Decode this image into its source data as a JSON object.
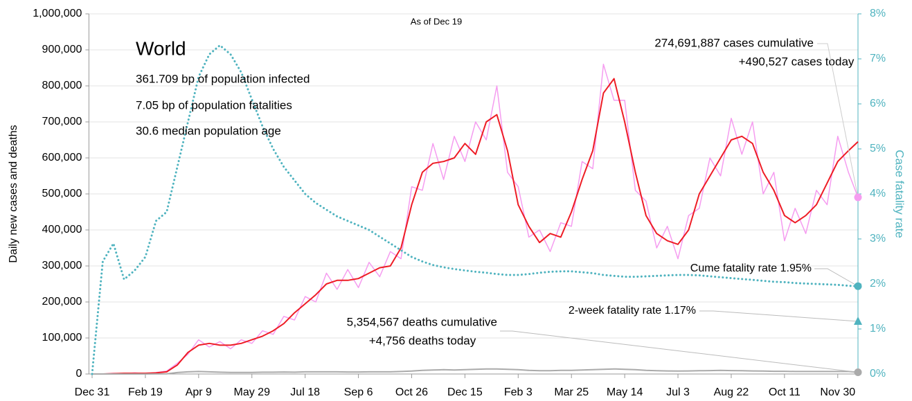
{
  "chart_data": {
    "type": "line",
    "subtitle": "As of Dec 19",
    "ylabel": "Daily new cases and deaths",
    "y2label": "Case fatality rate",
    "annotations": [
      "World",
      "361.709 bp of population infected",
      "7.05 bp of population fatalities",
      "30.6 median population age",
      "274,691,887 cases cumulative",
      "+490,527 cases today",
      "Cume fatality rate 1.95%",
      "2-week fatality rate 1.17%",
      "5,354,567 deaths cumulative",
      "+4,756 deaths today"
    ],
    "two_week_fatality_rate": 1.17,
    "two_week_color": "#4fb3bf",
    "x": [
      0,
      10,
      20,
      30,
      40,
      50,
      60,
      70,
      80,
      90,
      100,
      110,
      120,
      130,
      140,
      150,
      160,
      170,
      180,
      190,
      200,
      210,
      220,
      230,
      240,
      250,
      260,
      270,
      280,
      290,
      300,
      310,
      320,
      330,
      340,
      350,
      360,
      370,
      380,
      390,
      400,
      410,
      420,
      430,
      440,
      450,
      460,
      470,
      480,
      490,
      500,
      510,
      520,
      530,
      540,
      550,
      560,
      570,
      580,
      590,
      600,
      610,
      620,
      630,
      640,
      650,
      660,
      670,
      680,
      690,
      700,
      710,
      719
    ],
    "xlim": [
      -3,
      719
    ],
    "xticks": [
      {
        "value": 0,
        "label": "Dec 31"
      },
      {
        "value": 50,
        "label": "Feb 19"
      },
      {
        "value": 100,
        "label": "Apr 9"
      },
      {
        "value": 150,
        "label": "May 29"
      },
      {
        "value": 200,
        "label": "Jul 18"
      },
      {
        "value": 250,
        "label": "Sep 6"
      },
      {
        "value": 300,
        "label": "Oct 26"
      },
      {
        "value": 350,
        "label": "Dec 15"
      },
      {
        "value": 400,
        "label": "Feb 3"
      },
      {
        "value": 450,
        "label": "Mar 25"
      },
      {
        "value": 500,
        "label": "May 14"
      },
      {
        "value": 550,
        "label": "Jul 3"
      },
      {
        "value": 600,
        "label": "Aug 22"
      },
      {
        "value": 650,
        "label": "Oct 11"
      },
      {
        "value": 700,
        "label": "Nov 30"
      }
    ],
    "ylim": [
      0,
      1000000
    ],
    "yticks": [
      0,
      {
        "value": 100000,
        "label": "100,000"
      },
      {
        "value": 200000,
        "label": "200,000"
      },
      {
        "value": 300000,
        "label": "300,000"
      },
      {
        "value": 400000,
        "label": "400,000"
      },
      {
        "value": 500000,
        "label": "500,000"
      },
      {
        "value": 600000,
        "label": "600,000"
      },
      {
        "value": 700000,
        "label": "700,000"
      },
      {
        "value": 800000,
        "label": "800,000"
      },
      {
        "value": 900000,
        "label": "900,000"
      },
      {
        "value": 1000000,
        "label": "1,000,000"
      }
    ],
    "y2lim": [
      0,
      8
    ],
    "y2ticks": [
      {
        "value": 0,
        "label": "0%"
      },
      {
        "value": 1,
        "label": "1%"
      },
      {
        "value": 2,
        "label": "2%"
      },
      {
        "value": 3,
        "label": "3%"
      },
      {
        "value": 4,
        "label": "4%"
      },
      {
        "value": 5,
        "label": "5%"
      },
      {
        "value": 6,
        "label": "6%"
      },
      {
        "value": 7,
        "label": "7%"
      },
      {
        "value": 8,
        "label": "8%"
      }
    ],
    "grid": true,
    "series": [
      {
        "color": "#f59cf0",
        "style": "solid",
        "width": 1.5,
        "end_marker": true,
        "values": [
          0,
          0,
          2000,
          1000,
          3000,
          1000,
          4000,
          8000,
          30000,
          55000,
          95000,
          75000,
          90000,
          70000,
          95000,
          85000,
          120000,
          110000,
          160000,
          150000,
          215000,
          200000,
          280000,
          235000,
          290000,
          240000,
          310000,
          270000,
          340000,
          320000,
          520000,
          510000,
          640000,
          540000,
          660000,
          590000,
          700000,
          650000,
          800000,
          560000,
          520000,
          380000,
          400000,
          340000,
          420000,
          410000,
          590000,
          570000,
          860000,
          760000,
          760000,
          510000,
          480000,
          350000,
          410000,
          320000,
          440000,
          460000,
          600000,
          550000,
          710000,
          610000,
          700000,
          500000,
          560000,
          370000,
          460000,
          390000,
          510000,
          470000,
          660000,
          560000,
          490527
        ]
      },
      {
        "color": "#ee1c25",
        "style": "solid",
        "width": 2,
        "end_marker": false,
        "values": [
          0,
          0,
          1000,
          2000,
          2000,
          2000,
          3000,
          6000,
          25000,
          60000,
          80000,
          85000,
          80000,
          80000,
          85000,
          95000,
          105000,
          120000,
          140000,
          170000,
          195000,
          220000,
          250000,
          260000,
          260000,
          265000,
          280000,
          295000,
          300000,
          350000,
          470000,
          560000,
          585000,
          590000,
          600000,
          640000,
          610000,
          700000,
          720000,
          620000,
          470000,
          410000,
          365000,
          390000,
          380000,
          450000,
          540000,
          620000,
          780000,
          820000,
          700000,
          560000,
          440000,
          390000,
          370000,
          360000,
          400000,
          500000,
          550000,
          600000,
          650000,
          660000,
          640000,
          560000,
          510000,
          440000,
          420000,
          440000,
          470000,
          530000,
          590000,
          620000,
          645000
        ]
      },
      {
        "color": "#aaaaaa",
        "style": "solid",
        "width": 2,
        "end_marker": true,
        "values": [
          0,
          0,
          0,
          0,
          0,
          0,
          100,
          500,
          4000,
          6000,
          7000,
          6000,
          5000,
          4500,
          4500,
          4500,
          5000,
          5000,
          5500,
          5000,
          6000,
          6000,
          6000,
          6000,
          5500,
          5500,
          6000,
          6000,
          6000,
          7000,
          8000,
          10000,
          11000,
          12000,
          11000,
          12000,
          13000,
          14000,
          14000,
          13000,
          12000,
          10000,
          9000,
          9000,
          10000,
          10000,
          11000,
          12000,
          13000,
          14000,
          13000,
          12000,
          10000,
          9000,
          8500,
          8000,
          8500,
          9000,
          9500,
          10000,
          9500,
          9000,
          8500,
          8000,
          7500,
          7500,
          7000,
          7000,
          7000,
          7000,
          7000,
          7000,
          4756
        ]
      },
      {
        "color": "#4fb3bf",
        "style": "dotted",
        "width": 3,
        "end_marker": true,
        "axis": "y2",
        "values": [
          0,
          2.5,
          2.9,
          2.1,
          2.3,
          2.6,
          3.4,
          3.6,
          4.6,
          5.6,
          6.6,
          7.1,
          7.3,
          7.1,
          6.7,
          6.1,
          5.5,
          5.0,
          4.6,
          4.3,
          4.0,
          3.8,
          3.65,
          3.5,
          3.4,
          3.3,
          3.2,
          3.05,
          2.9,
          2.75,
          2.6,
          2.5,
          2.42,
          2.37,
          2.33,
          2.3,
          2.27,
          2.25,
          2.22,
          2.2,
          2.2,
          2.22,
          2.25,
          2.27,
          2.28,
          2.28,
          2.26,
          2.24,
          2.2,
          2.18,
          2.16,
          2.16,
          2.17,
          2.18,
          2.19,
          2.2,
          2.2,
          2.19,
          2.17,
          2.15,
          2.13,
          2.11,
          2.09,
          2.07,
          2.05,
          2.04,
          2.02,
          2.01,
          2.0,
          1.99,
          1.98,
          1.96,
          1.95
        ]
      }
    ]
  }
}
